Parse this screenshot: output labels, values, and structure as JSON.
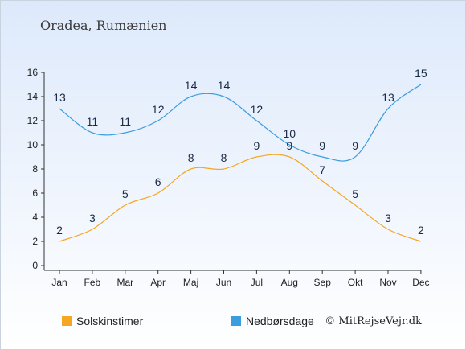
{
  "title": "Oradea, Rumænien",
  "credit": "© MitRejseVejr.dk",
  "chart_data": {
    "type": "line",
    "categories": [
      "Jan",
      "Feb",
      "Mar",
      "Apr",
      "Maj",
      "Jun",
      "Jul",
      "Aug",
      "Sep",
      "Okt",
      "Nov",
      "Dec"
    ],
    "ylim": [
      0,
      16
    ],
    "yticks": [
      0,
      2,
      4,
      6,
      8,
      10,
      12,
      14,
      16
    ],
    "grid": false,
    "legend_position": "bottom",
    "series": [
      {
        "name": "Solskinstimer",
        "color": "#f5a623",
        "values": [
          2,
          3,
          5,
          6,
          8,
          8,
          9,
          9,
          7,
          5,
          3,
          2
        ]
      },
      {
        "name": "Nedbørsdage",
        "color": "#3a9de0",
        "values": [
          13,
          11,
          11,
          12,
          14,
          14,
          12,
          10,
          9,
          9,
          13,
          15
        ]
      }
    ]
  }
}
